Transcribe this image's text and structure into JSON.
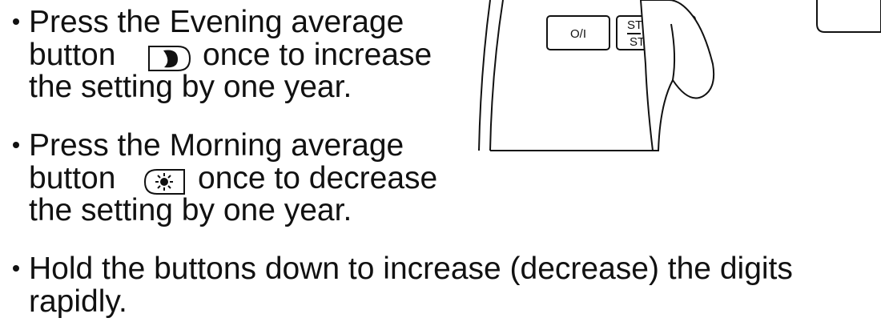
{
  "bullets": [
    {
      "line1": "Press the Evening average",
      "line2_before": "button",
      "line2_after": "once to increase",
      "line3": "the setting by one year."
    },
    {
      "line1": "Press the Morning average",
      "line2_before": "button",
      "line2_after": "once to decrease",
      "line3": "the setting by one year."
    },
    {
      "line1": "Hold the buttons down to increase (decrease) the digits",
      "line2": "rapidly."
    }
  ],
  "illustration": {
    "power_button": "O/I",
    "start_top": "ST",
    "start_bottom": "ST"
  }
}
